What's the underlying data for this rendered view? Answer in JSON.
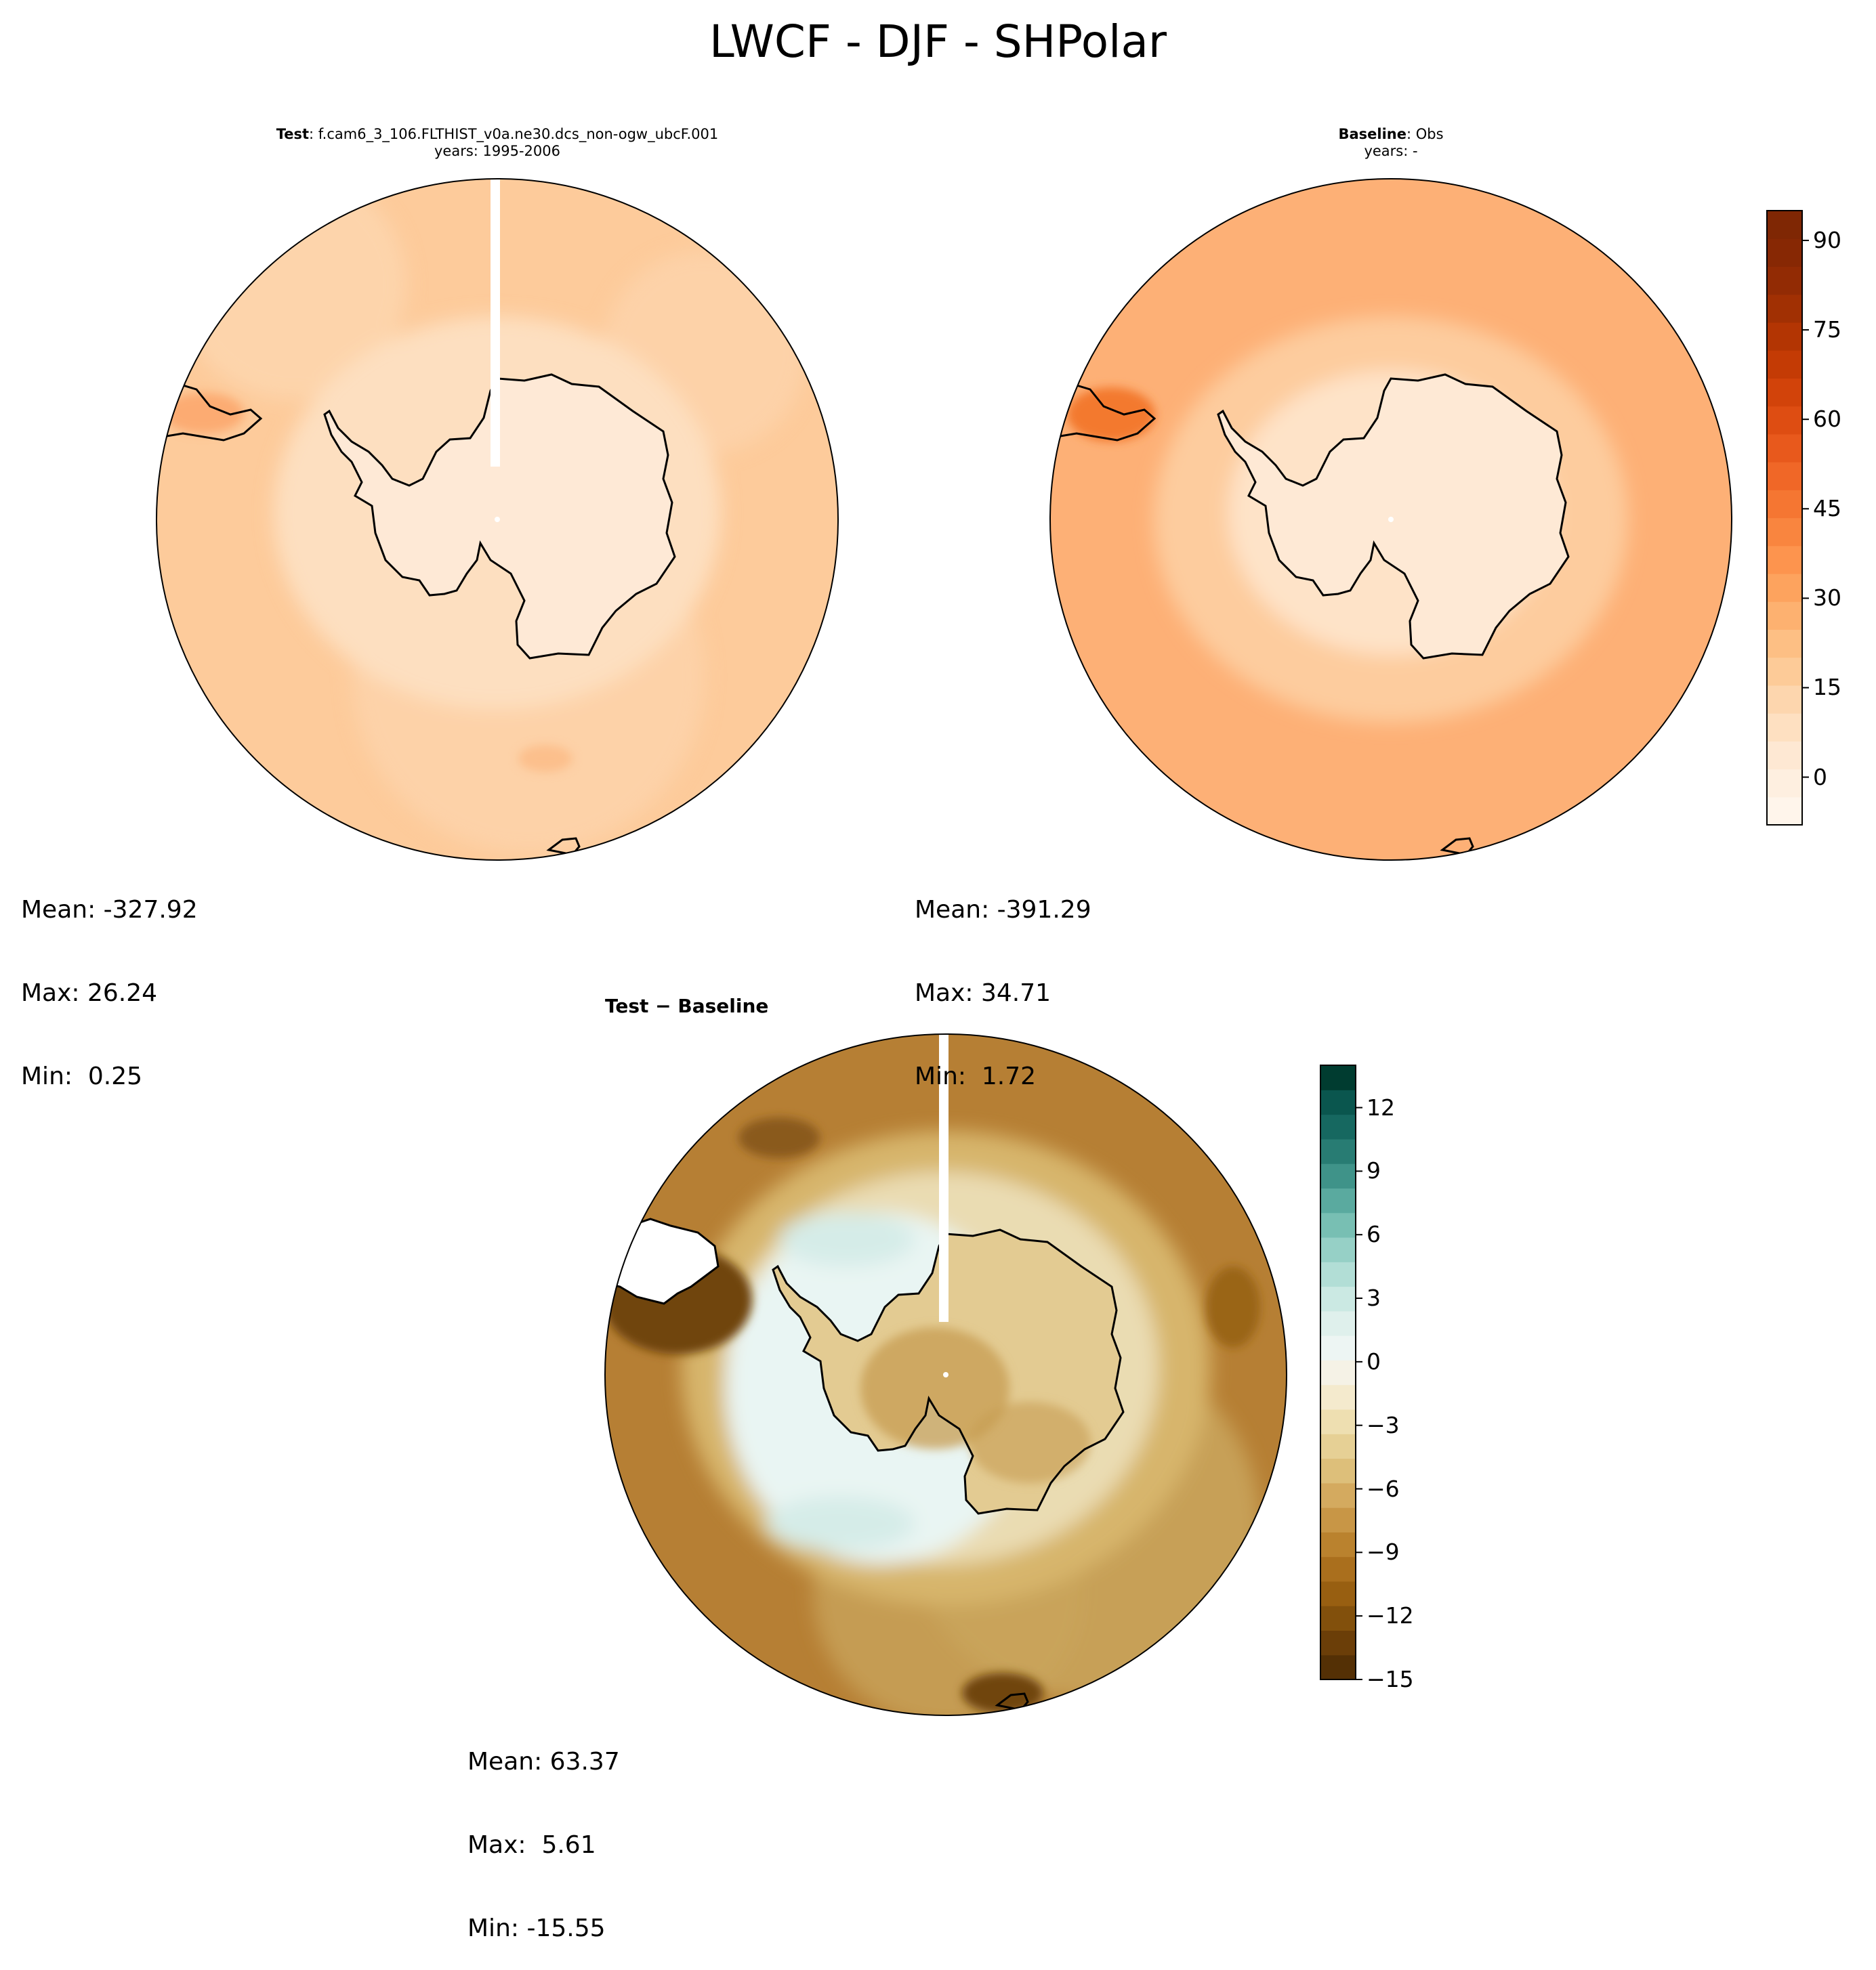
{
  "title": "LWCF - DJF - SHPolar",
  "panels": [
    {
      "id": "test",
      "title_bold": "Test",
      "title_rest": ": f.cam6_3_106.FLTHIST_v0a.ne30.dcs_non-ogw_ubcF.001",
      "subtitle": "years: 1995-2006",
      "stats": {
        "mean": "Mean: -327.92",
        "max": "Max: 26.24",
        "min": "Min:  0.25"
      },
      "colors": {
        "outer": "#fdcb9b",
        "mid": "#fddfc0",
        "inner": "#fee9d6",
        "peninsula": "#fcab72"
      }
    },
    {
      "id": "baseline",
      "title_bold": "Baseline",
      "title_rest": ": Obs",
      "subtitle": "years: -",
      "stats": {
        "mean": "Mean: -391.29",
        "max": "Max: 34.71",
        "min": "Min:  1.72"
      },
      "colors": {
        "outer": "#fdb076",
        "mid": "#fdcc9e",
        "inner": "#fee9d5",
        "peninsula": "#f3792e"
      }
    },
    {
      "id": "diff",
      "title": "Test − Baseline",
      "stats": {
        "mean": "Mean: 63.37",
        "max": "Max:  5.61",
        "min": "Min: -15.55"
      },
      "colors": {
        "outer": "#b67f34",
        "mid": "#d7b56c",
        "ring": "#e9f5f3",
        "land": "#e3cb92",
        "dark": "#6f4409"
      }
    }
  ],
  "chart_data": [
    {
      "type": "heatmap",
      "panel": "test",
      "projection": "south polar stereographic",
      "stats": {
        "mean": -327.92,
        "max": 26.24,
        "min": 0.25
      },
      "colorbar": {
        "shared_with": "baseline",
        "range": [
          -8,
          95
        ],
        "ticks": [
          0,
          15,
          30,
          45,
          60,
          75,
          90
        ],
        "colormap": "Oranges"
      }
    },
    {
      "type": "heatmap",
      "panel": "baseline",
      "projection": "south polar stereographic",
      "stats": {
        "mean": -391.29,
        "max": 34.71,
        "min": 1.72
      },
      "colorbar": {
        "range": [
          -8,
          95
        ],
        "ticks": [
          0,
          15,
          30,
          45,
          60,
          75,
          90
        ],
        "tick_labels": [
          "0",
          "15",
          "30",
          "45",
          "60",
          "75",
          "90"
        ],
        "colors": [
          "#fff5eb",
          "#feefe0",
          "#fee8d3",
          "#fee0c1",
          "#fdd6ae",
          "#fdcb98",
          "#fdbf84",
          "#fdb170",
          "#fda35e",
          "#fd944e",
          "#f9853f",
          "#f57632",
          "#f06727",
          "#e8591c",
          "#de4d12",
          "#d2430a",
          "#c43b05",
          "#b33503",
          "#a13003",
          "#922b04",
          "#872804",
          "#7f2704"
        ]
      }
    },
    {
      "type": "heatmap",
      "panel": "diff",
      "projection": "south polar stereographic",
      "stats": {
        "mean": 63.37,
        "max": 5.61,
        "min": -15.55
      },
      "colorbar": {
        "range": [
          -15,
          14
        ],
        "ticks": [
          -15,
          -12,
          -9,
          -6,
          -3,
          0,
          3,
          6,
          9,
          12
        ],
        "tick_labels": [
          "−15",
          "−12",
          "−9",
          "−6",
          "−3",
          "0",
          "3",
          "6",
          "9",
          "12"
        ],
        "colors": [
          "#543005",
          "#6b3e08",
          "#82500c",
          "#985f11",
          "#aa6f1d",
          "#ba822e",
          "#c89646",
          "#d4aa5f",
          "#ddbf7a",
          "#e6d095",
          "#eedfb1",
          "#f4eacd",
          "#f5f2e6",
          "#edf5f3",
          "#dff0ec",
          "#cbe9e3",
          "#b2ded6",
          "#96d0c6",
          "#78bfb3",
          "#5aaa9f",
          "#3f9389",
          "#287c73",
          "#166860",
          "#0a564e",
          "#003c30"
        ]
      }
    }
  ]
}
